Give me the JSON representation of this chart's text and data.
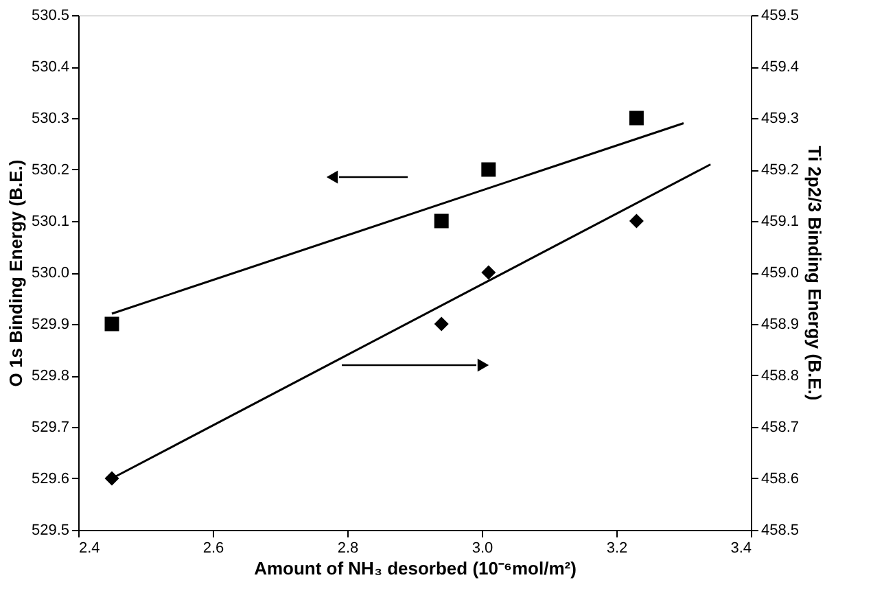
{
  "chart_data": {
    "type": "scatter",
    "xlabel": "Amount of NH₃ desorbed (10⁻⁶mol/m²)",
    "ylabel": "O 1s Binding Energy (B.E.)",
    "y2label": "Ti 2p2/3 Binding Energy (B.E.)",
    "xlim": [
      2.4,
      3.4
    ],
    "xticks": [
      2.4,
      2.6,
      2.8,
      {
        "value": 3,
        "label": "3.0"
      },
      3.2,
      3.4
    ],
    "ylim": [
      529.5,
      530.5
    ],
    "yticks": [
      529.5,
      529.6,
      529.7,
      529.8,
      529.9,
      {
        "value": 530,
        "label": "530.0"
      },
      530.1,
      530.2,
      530.3,
      530.4,
      530.5
    ],
    "y2lim": [
      458.5,
      459.5
    ],
    "y2ticks": [
      458.5,
      458.6,
      458.7,
      458.8,
      458.9,
      {
        "value": 459,
        "label": "459.0"
      },
      459.1,
      459.2,
      459.3,
      459.4,
      459.5
    ],
    "grid": false,
    "legend": false,
    "series": [
      {
        "type": "scatter",
        "marker": "square",
        "color": "#000000",
        "x": [
          2.45,
          2.94,
          3.01,
          3.23
        ],
        "values": [
          529.9,
          530.1,
          530.2,
          530.3
        ]
      },
      {
        "type": "scatter",
        "marker": "diamond",
        "color": "#000000",
        "axis": "y2",
        "x": [
          2.45,
          2.94,
          3.01,
          3.23
        ],
        "values": [
          458.6,
          458.9,
          459.0,
          459.1
        ]
      },
      {
        "type": "line",
        "color": "#000000",
        "x": [
          2.45,
          3.3
        ],
        "values": [
          529.92,
          530.29
        ]
      },
      {
        "type": "line",
        "color": "#000000",
        "axis": "y2",
        "x": [
          2.45,
          3.34
        ],
        "values": [
          458.6,
          459.21
        ]
      }
    ]
  }
}
